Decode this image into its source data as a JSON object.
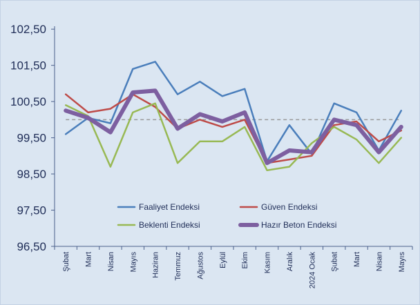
{
  "chart_data": {
    "type": "line",
    "title": "",
    "xlabel": "",
    "ylabel": "",
    "ylim": [
      96.5,
      103.0
    ],
    "yticks": [
      "96,50",
      "97,50",
      "98,50",
      "99,50",
      "100,50",
      "101,50",
      "102,50"
    ],
    "ytick_values": [
      96.5,
      97.5,
      98.5,
      99.5,
      100.5,
      101.5,
      102.5
    ],
    "categories": [
      "Şubat",
      "Mart",
      "Nisan",
      "Mayıs",
      "Haziran",
      "Temmuz",
      "Ağustos",
      "Eylül",
      "Ekim",
      "Kasım",
      "Aralık",
      "2024 Ocak",
      "Şubat",
      "Mart",
      "Nisan",
      "Mayıs"
    ],
    "series": [
      {
        "name": "Faaliyet Endeksi",
        "color": "#4a7ebb",
        "values": [
          99.6,
          100.05,
          99.9,
          101.4,
          101.6,
          100.7,
          101.05,
          100.65,
          100.85,
          98.85,
          99.85,
          99.05,
          100.45,
          100.2,
          99.15,
          100.25
        ]
      },
      {
        "name": "Güven Endeksi",
        "color": "#be4b48",
        "values": [
          100.7,
          100.2,
          100.3,
          100.7,
          100.35,
          99.75,
          100.0,
          99.8,
          100.0,
          98.8,
          98.9,
          99.0,
          99.85,
          99.95,
          99.4,
          99.7
        ]
      },
      {
        "name": "Beklenti Endeksi",
        "color": "#98b954",
        "values": [
          100.4,
          100.1,
          98.7,
          100.2,
          100.45,
          98.8,
          99.4,
          99.4,
          99.8,
          98.6,
          98.7,
          99.35,
          99.8,
          99.45,
          98.8,
          99.5
        ]
      },
      {
        "name": "Hazır Beton Endeksi",
        "color": "#7d5fa0",
        "values": [
          100.25,
          100.05,
          99.65,
          100.75,
          100.8,
          99.75,
          100.15,
          99.95,
          100.2,
          98.8,
          99.15,
          99.1,
          100.0,
          99.85,
          99.1,
          99.8
        ]
      }
    ],
    "reference_line": {
      "value": 100.0,
      "color": "#999999",
      "style": "dashed"
    },
    "legend_position": "bottom-center",
    "grid": false
  }
}
